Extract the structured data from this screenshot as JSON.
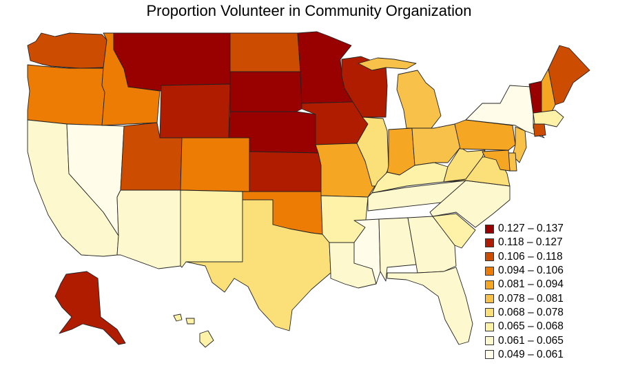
{
  "title": "Proportion Volunteer in Community Organization",
  "legend": [
    {
      "label": "0.127 – 0.137",
      "color": "#990000"
    },
    {
      "label": "0.118 – 0.127",
      "color": "#b01c00"
    },
    {
      "label": "0.106 – 0.118",
      "color": "#cc4c02"
    },
    {
      "label": "0.094 – 0.106",
      "color": "#ec7c04"
    },
    {
      "label": "0.081 – 0.094",
      "color": "#f5a623"
    },
    {
      "label": "0.078 – 0.081",
      "color": "#f8c24a"
    },
    {
      "label": "0.068 – 0.078",
      "color": "#fbe07a"
    },
    {
      "label": "0.065 – 0.068",
      "color": "#fdf2a8"
    },
    {
      "label": "0.061 – 0.065",
      "color": "#fef8cf"
    },
    {
      "label": "0.049 – 0.061",
      "color": "#fffce9"
    }
  ],
  "states": {
    "WA": 2,
    "OR": 3,
    "CA": 8,
    "NV": 9,
    "ID": 3,
    "MT": 0,
    "WY": 1,
    "UT": 2,
    "AZ": 8,
    "CO": 3,
    "NM": 7,
    "ND": 2,
    "SD": 0,
    "NE": 0,
    "KS": 1,
    "OK": 3,
    "TX": 6,
    "MN": 0,
    "IA": 1,
    "MO": 4,
    "AR": 7,
    "LA": 8,
    "WI": 1,
    "IL": 6,
    "MI": 5,
    "IN": 4,
    "OH": 5,
    "KY": 7,
    "TN": 8,
    "MS": 9,
    "AL": 8,
    "GA": 8,
    "FL": 8,
    "SC": 7,
    "NC": 8,
    "VA": 6,
    "WV": 6,
    "PA": 4,
    "NY": 9,
    "VT": 0,
    "NH": 4,
    "ME": 2,
    "MA": 7,
    "CT": 2,
    "NJ": 5,
    "DE": 5,
    "MD": 4,
    "AK": 1,
    "HI": 7
  }
}
